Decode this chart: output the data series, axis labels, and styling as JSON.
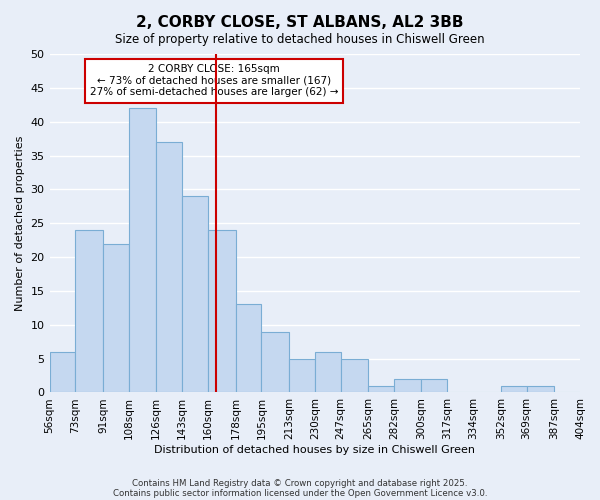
{
  "title": "2, CORBY CLOSE, ST ALBANS, AL2 3BB",
  "subtitle": "Size of property relative to detached houses in Chiswell Green",
  "xlabel": "Distribution of detached houses by size in Chiswell Green",
  "ylabel": "Number of detached properties",
  "bar_values": [
    6,
    24,
    22,
    42,
    37,
    29,
    24,
    13,
    9,
    5,
    6,
    5,
    1,
    2,
    2,
    0,
    0,
    1,
    1,
    0
  ],
  "bin_edges": [
    56,
    73,
    91,
    108,
    126,
    143,
    160,
    178,
    195,
    213,
    230,
    247,
    265,
    282,
    300,
    317,
    334,
    352,
    369,
    387,
    404
  ],
  "tick_labels": [
    "56sqm",
    "73sqm",
    "91sqm",
    "108sqm",
    "126sqm",
    "143sqm",
    "160sqm",
    "178sqm",
    "195sqm",
    "213sqm",
    "230sqm",
    "247sqm",
    "265sqm",
    "282sqm",
    "300sqm",
    "317sqm",
    "334sqm",
    "352sqm",
    "369sqm",
    "387sqm",
    "404sqm"
  ],
  "bar_color": "#c5d8f0",
  "bar_edgecolor": "#7aadd4",
  "vline_x": 165,
  "vline_color": "#cc0000",
  "annotation_box_text": "2 CORBY CLOSE: 165sqm\n← 73% of detached houses are smaller (167)\n27% of semi-detached houses are larger (62) →",
  "ylim": [
    0,
    50
  ],
  "yticks": [
    0,
    5,
    10,
    15,
    20,
    25,
    30,
    35,
    40,
    45,
    50
  ],
  "bg_color": "#e8eef8",
  "grid_color": "#ffffff",
  "footer_line1": "Contains HM Land Registry data © Crown copyright and database right 2025.",
  "footer_line2": "Contains public sector information licensed under the Open Government Licence v3.0."
}
